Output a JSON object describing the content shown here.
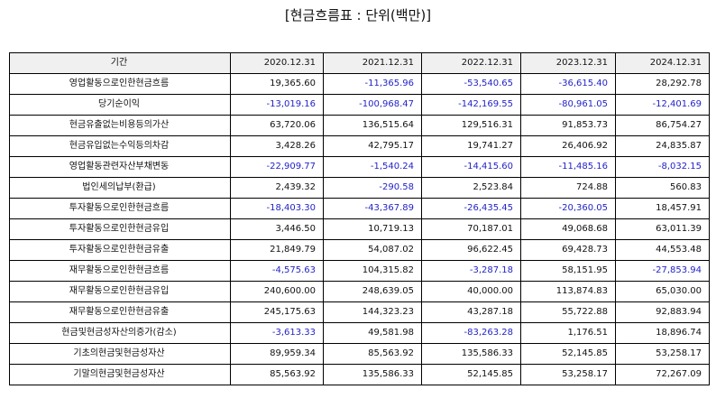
{
  "title": "[현금흐름표 : 단위(백만)]",
  "colors": {
    "negative": "#2323c8",
    "header_bg": "#f0f0f0",
    "border": "#000000"
  },
  "table": {
    "headers": [
      "기간",
      "2020.12.31",
      "2021.12.31",
      "2022.12.31",
      "2023.12.31",
      "2024.12.31"
    ],
    "rows": [
      {
        "label": "영업활동으로인한현금흐름",
        "values": [
          "19,365.60",
          "-11,365.96",
          "-53,540.65",
          "-36,615.40",
          "28,292.78"
        ]
      },
      {
        "label": "당기순이익",
        "values": [
          "-13,019.16",
          "-100,968.47",
          "-142,169.55",
          "-80,961.05",
          "-12,401.69"
        ]
      },
      {
        "label": "현금유출없는비용등의가산",
        "values": [
          "63,720.06",
          "136,515.64",
          "129,516.31",
          "91,853.73",
          "86,754.27"
        ]
      },
      {
        "label": "현금유입없는수익등의차감",
        "values": [
          "3,428.26",
          "42,795.17",
          "19,741.27",
          "26,406.92",
          "24,835.87"
        ]
      },
      {
        "label": "영업활동관련자산부채변동",
        "values": [
          "-22,909.77",
          "-1,540.24",
          "-14,415.60",
          "-11,485.16",
          "-8,032.15"
        ]
      },
      {
        "label": "법인세의납부(환급)",
        "values": [
          "2,439.32",
          "-290.58",
          "2,523.84",
          "724.88",
          "560.83"
        ]
      },
      {
        "label": "투자활동으로인한현금흐름",
        "values": [
          "-18,403.30",
          "-43,367.89",
          "-26,435.45",
          "-20,360.05",
          "18,457.91"
        ]
      },
      {
        "label": "투자활동으로인한현금유입",
        "values": [
          "3,446.50",
          "10,719.13",
          "70,187.01",
          "49,068.68",
          "63,011.39"
        ]
      },
      {
        "label": "투자활동으로인한현금유출",
        "values": [
          "21,849.79",
          "54,087.02",
          "96,622.45",
          "69,428.73",
          "44,553.48"
        ]
      },
      {
        "label": "재무활동으로인한현금흐름",
        "values": [
          "-4,575.63",
          "104,315.82",
          "-3,287.18",
          "58,151.95",
          "-27,853.94"
        ]
      },
      {
        "label": "재무활동으로인한현금유입",
        "values": [
          "240,600.00",
          "248,639.05",
          "40,000.00",
          "113,874.83",
          "65,030.00"
        ]
      },
      {
        "label": "재무활동으로인한현금유출",
        "values": [
          "245,175.63",
          "144,323.23",
          "43,287.18",
          "55,722.88",
          "92,883.94"
        ]
      },
      {
        "label": "현금및현금성자산의증가(감소)",
        "values": [
          "-3,613.33",
          "49,581.98",
          "-83,263.28",
          "1,176.51",
          "18,896.74"
        ]
      },
      {
        "label": "기초의현금및현금성자산",
        "values": [
          "89,959.34",
          "85,563.92",
          "135,586.33",
          "52,145.85",
          "53,258.17"
        ]
      },
      {
        "label": "기말의현금및현금성자산",
        "values": [
          "85,563.92",
          "135,586.33",
          "52,145.85",
          "53,258.17",
          "72,267.09"
        ]
      }
    ]
  }
}
